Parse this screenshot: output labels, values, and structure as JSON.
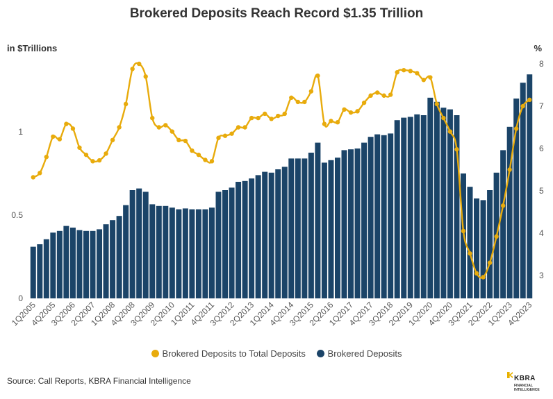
{
  "title": "Brokered Deposits Reach Record $1.35 Trillion",
  "left_unit": "in $Trillions",
  "right_unit": "%",
  "source": "Source: Call Reports, KBRA Financial Intelligence",
  "logo": {
    "name": "KBRA",
    "sub": "FINANCIAL INTELLIGENCE"
  },
  "colors": {
    "bar": "#1b4468",
    "line": "#e8ab0c"
  },
  "chart_data": {
    "type": "bar+line",
    "title": "Brokered Deposits Reach Record $1.35 Trillion",
    "categories": [
      "1Q2005",
      "2Q2005",
      "3Q2005",
      "4Q2005",
      "1Q2006",
      "2Q2006",
      "3Q2006",
      "4Q2006",
      "1Q2007",
      "2Q2007",
      "3Q2007",
      "4Q2007",
      "1Q2008",
      "2Q2008",
      "3Q2008",
      "4Q2008",
      "1Q2009",
      "2Q2009",
      "3Q2009",
      "4Q2009",
      "1Q2010",
      "2Q2010",
      "3Q2010",
      "4Q2010",
      "1Q2011",
      "2Q2011",
      "3Q2011",
      "4Q2011",
      "1Q2012",
      "2Q2012",
      "3Q2012",
      "4Q2012",
      "1Q2013",
      "2Q2013",
      "3Q2013",
      "4Q2013",
      "1Q2014",
      "2Q2014",
      "3Q2014",
      "4Q2014",
      "1Q2015",
      "2Q2015",
      "3Q2015",
      "4Q2015",
      "1Q2016",
      "2Q2016",
      "3Q2016",
      "4Q2016",
      "1Q2017",
      "2Q2017",
      "3Q2017",
      "4Q2017",
      "1Q2018",
      "2Q2018",
      "3Q2018",
      "4Q2018",
      "1Q2019",
      "2Q2019",
      "3Q2019",
      "4Q2019",
      "1Q2020",
      "2Q2020",
      "3Q2020",
      "4Q2020",
      "1Q2021",
      "2Q2021",
      "3Q2021",
      "4Q2021",
      "1Q2022",
      "2Q2022",
      "3Q2022",
      "4Q2022",
      "1Q2023",
      "2Q2023",
      "3Q2023",
      "4Q2023"
    ],
    "x_tick_labels": [
      "1Q2005",
      "4Q2005",
      "3Q2006",
      "2Q2007",
      "1Q2008",
      "4Q2008",
      "3Q2009",
      "2Q2010",
      "1Q2011",
      "4Q2011",
      "3Q2012",
      "2Q2013",
      "1Q2014",
      "4Q2014",
      "3Q2015",
      "2Q2016",
      "1Q2017",
      "4Q2017",
      "3Q2018",
      "2Q2019",
      "1Q2020",
      "4Q2020",
      "3Q2021",
      "2Q2022",
      "1Q2023",
      "4Q2023"
    ],
    "series": [
      {
        "name": "Brokered Deposits",
        "axis": "left",
        "type": "bar",
        "values": [
          0.31,
          0.325,
          0.355,
          0.395,
          0.405,
          0.435,
          0.425,
          0.41,
          0.405,
          0.405,
          0.415,
          0.445,
          0.47,
          0.495,
          0.56,
          0.65,
          0.66,
          0.64,
          0.565,
          0.555,
          0.555,
          0.545,
          0.535,
          0.54,
          0.535,
          0.535,
          0.535,
          0.545,
          0.64,
          0.65,
          0.665,
          0.7,
          0.705,
          0.72,
          0.74,
          0.76,
          0.755,
          0.775,
          0.79,
          0.84,
          0.84,
          0.84,
          0.875,
          0.935,
          0.815,
          0.83,
          0.845,
          0.89,
          0.895,
          0.9,
          0.935,
          0.97,
          0.985,
          0.98,
          0.99,
          1.07,
          1.085,
          1.09,
          1.105,
          1.1,
          1.205,
          1.18,
          1.145,
          1.135,
          1.1,
          0.75,
          0.67,
          0.6,
          0.59,
          0.65,
          0.755,
          0.89,
          1.03,
          1.2,
          1.295,
          1.345
        ]
      },
      {
        "name": "Brokered Deposits to Total Deposits",
        "axis": "right",
        "type": "line",
        "values": [
          5.32,
          5.42,
          5.8,
          6.28,
          6.22,
          6.58,
          6.47,
          6.02,
          5.85,
          5.7,
          5.72,
          5.88,
          6.2,
          6.5,
          7.05,
          7.88,
          8.0,
          7.7,
          6.72,
          6.5,
          6.55,
          6.4,
          6.2,
          6.18,
          5.95,
          5.85,
          5.73,
          5.7,
          6.25,
          6.3,
          6.35,
          6.5,
          6.5,
          6.72,
          6.72,
          6.82,
          6.7,
          6.77,
          6.82,
          7.2,
          7.1,
          7.1,
          7.35,
          7.72,
          6.58,
          6.65,
          6.62,
          6.92,
          6.85,
          6.88,
          7.08,
          7.25,
          7.32,
          7.25,
          7.27,
          7.8,
          7.85,
          7.83,
          7.78,
          7.62,
          7.68,
          7.05,
          6.72,
          6.4,
          5.98,
          4.05,
          3.52,
          3.05,
          2.96,
          3.3,
          3.92,
          4.65,
          5.5,
          6.47,
          7.0,
          7.15
        ]
      }
    ],
    "y_left": {
      "min": 0,
      "max": 1.4,
      "ticks": [
        0,
        0.5,
        1
      ],
      "tick_labels": [
        "0",
        "0.5",
        "1"
      ]
    },
    "y_right": {
      "min": 2.5,
      "max": 8,
      "ticks": [
        3,
        4,
        5,
        6,
        7,
        8
      ],
      "tick_labels": [
        "3",
        "4",
        "5",
        "6",
        "7",
        "8"
      ]
    },
    "legend": [
      "Brokered Deposits to Total Deposits",
      "Brokered Deposits"
    ],
    "legend_position": "bottom"
  }
}
